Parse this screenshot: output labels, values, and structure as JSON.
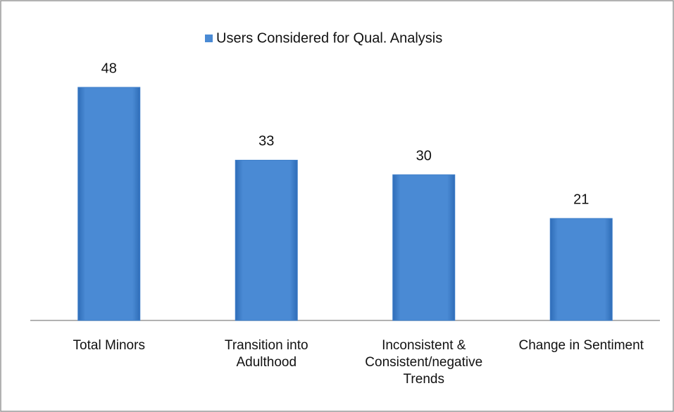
{
  "chart_data": {
    "type": "bar",
    "categories": [
      "Total Minors",
      "Transition into Adulthood",
      "Inconsistent & Consistent/negative Trends",
      "Change in Sentiment"
    ],
    "series": [
      {
        "name": "Users Considered for Qual. Analysis",
        "color": "#4a8ad4",
        "values": [
          48,
          33,
          30,
          21
        ]
      }
    ],
    "legend": "top"
  }
}
